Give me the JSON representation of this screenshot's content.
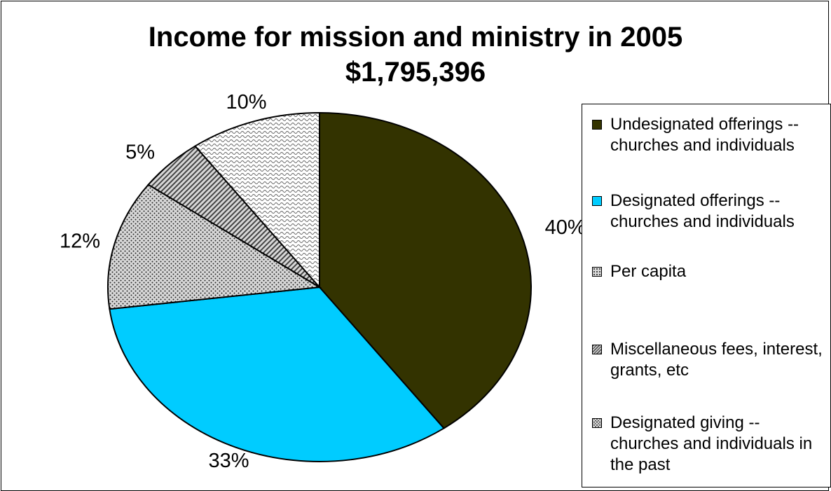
{
  "chart_data": {
    "type": "pie",
    "title": "Income for mission and ministry in 2005",
    "subtitle": "$1,795,396",
    "slices": [
      {
        "label": "Undesignated offerings -- churches and individuals",
        "value": 40,
        "value_label": "40%",
        "color": "#333300",
        "pattern": "solid"
      },
      {
        "label": "Designated offerings -- churches and individuals",
        "value": 33,
        "value_label": "33%",
        "color": "#00ccff",
        "pattern": "solid"
      },
      {
        "label": "Per capita",
        "value": 12,
        "value_label": "12%",
        "color": "#c0c0c0",
        "pattern": "dots"
      },
      {
        "label": "Miscellaneous fees, interest, grants, etc",
        "value": 5,
        "value_label": "5%",
        "color": "#c0c0c0",
        "pattern": "diagonal"
      },
      {
        "label": "Designated giving -- churches and individuals in the past",
        "value": 10,
        "value_label": "10%",
        "color": "#ffffff",
        "pattern": "wave"
      }
    ],
    "legend_position": "right"
  }
}
